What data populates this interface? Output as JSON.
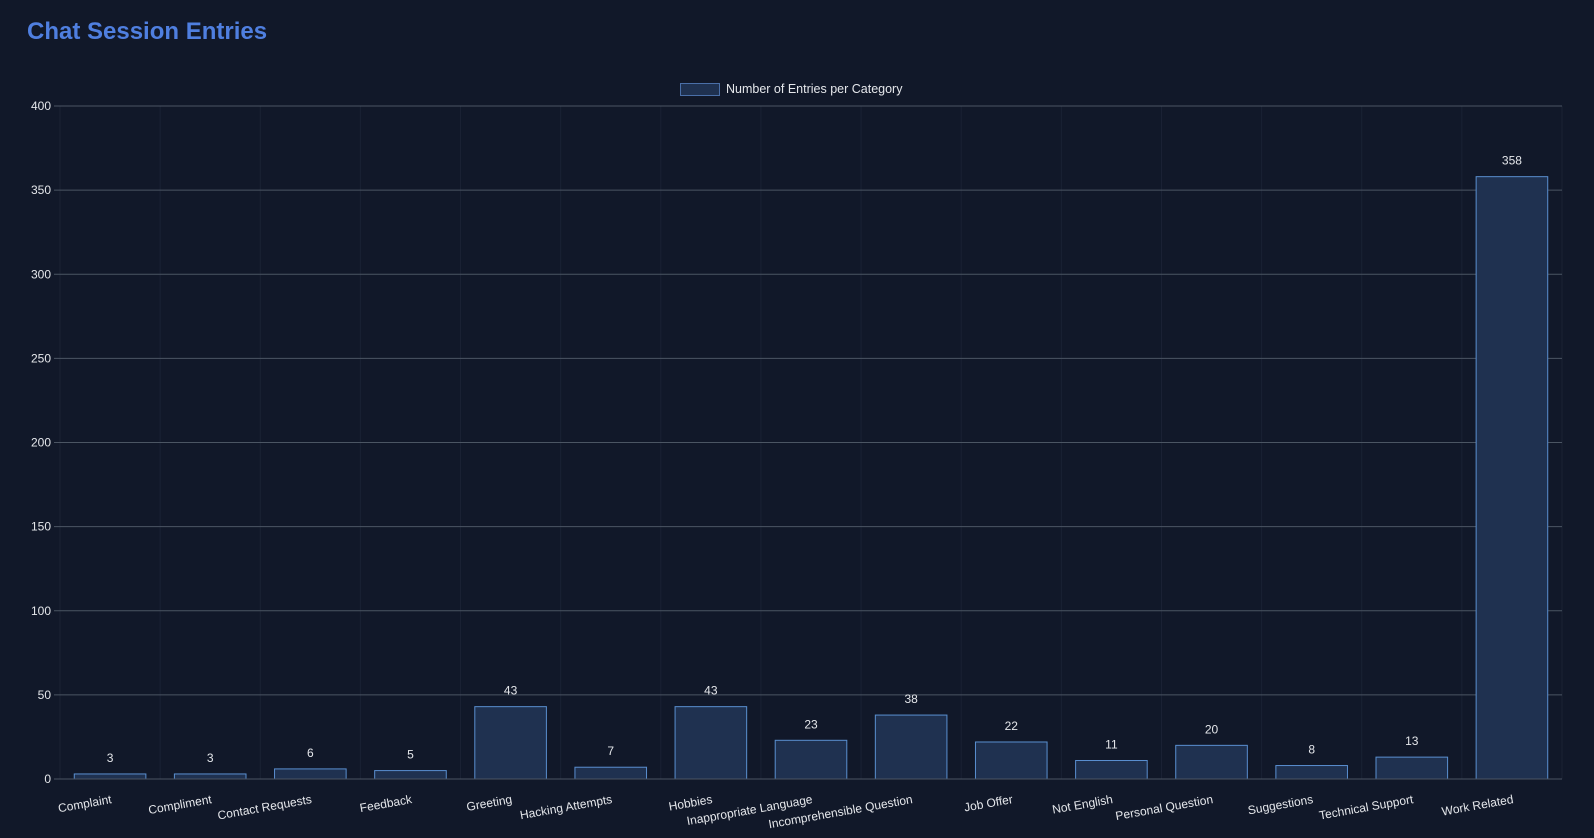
{
  "header": {
    "title": "Chat Session Entries"
  },
  "legend": {
    "label": "Number of Entries per Category",
    "swatch_fill": "#1f3150",
    "swatch_border": "#4a6fa8"
  },
  "chart_data": {
    "type": "bar",
    "title": "Chat Session Entries",
    "xlabel": "",
    "ylabel": "",
    "ylim": [
      0,
      400
    ],
    "yticks": [
      0,
      50,
      100,
      150,
      200,
      250,
      300,
      350,
      400
    ],
    "grid": true,
    "legend_position": "top",
    "categories": [
      "Complaint",
      "Compliment",
      "Contact Requests",
      "Feedback",
      "Greeting",
      "Hacking Attempts",
      "Hobbies",
      "Inappropriate Language",
      "Incomprehensible Question",
      "Job Offer",
      "Not English",
      "Personal Question",
      "Suggestions",
      "Technical Support",
      "Work Related"
    ],
    "series": [
      {
        "name": "Number of Entries per Category",
        "values": [
          3,
          3,
          6,
          5,
          43,
          7,
          43,
          23,
          38,
          22,
          11,
          20,
          8,
          13,
          358
        ]
      }
    ],
    "colors": {
      "bar_fill": "#1f3150",
      "bar_border": "#5a8fd0",
      "grid": "#4b5563",
      "title": "#4f7fe0",
      "background": "#111829"
    }
  }
}
